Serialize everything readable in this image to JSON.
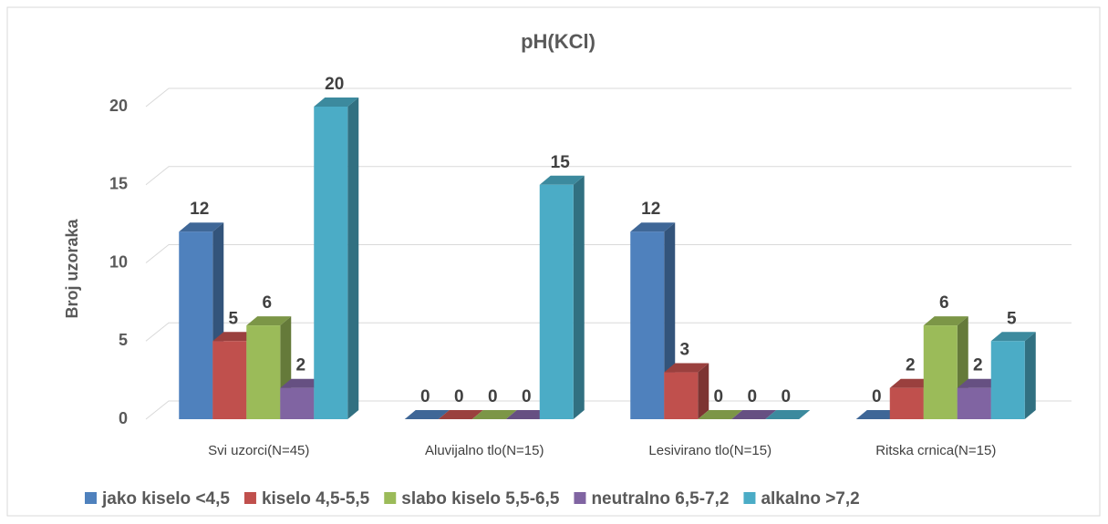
{
  "chart_data": {
    "type": "bar3d",
    "title": "pH(KCl)",
    "y_label": "Broj uzoraka",
    "categories": [
      "Svi uzorci(N=45)",
      "Aluvijalno tlo(N=15)",
      "Lesivirano tlo(N=15)",
      "Ritska crnica(N=15)"
    ],
    "series": [
      {
        "name": "jako kiselo <4,5",
        "color": "#4f81bd",
        "values": [
          12,
          0,
          12,
          0
        ]
      },
      {
        "name": "kiselo 4,5-5,5",
        "color": "#c0504d",
        "values": [
          5,
          0,
          3,
          2
        ]
      },
      {
        "name": "slabo kiselo 5,5-6,5",
        "color": "#9bbb59",
        "values": [
          6,
          0,
          0,
          6
        ]
      },
      {
        "name": "neutralno 6,5-7,2",
        "color": "#8064a2",
        "values": [
          2,
          0,
          0,
          2
        ]
      },
      {
        "name": "alkalno >7,2",
        "color": "#4bacc6",
        "values": [
          20,
          15,
          0,
          5
        ]
      }
    ],
    "ylim": [
      0,
      20
    ],
    "yticks": [
      0,
      5,
      10,
      15,
      20
    ],
    "grid": true,
    "legend": "bottom"
  }
}
